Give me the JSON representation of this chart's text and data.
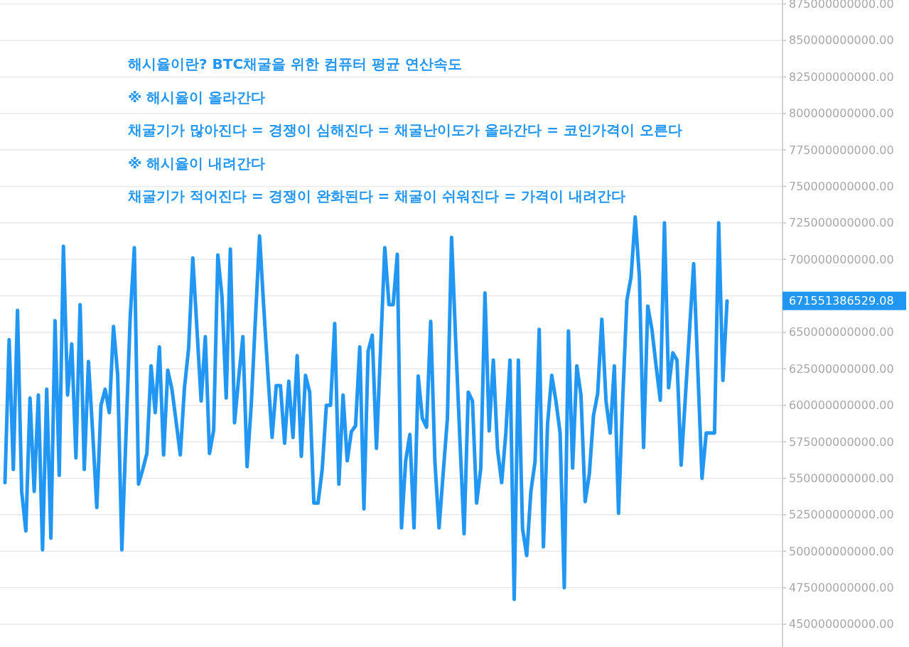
{
  "chart_data": {
    "type": "line",
    "categories": [
      null,
      null,
      null,
      null,
      null,
      null,
      null,
      null,
      null,
      null,
      null,
      null,
      null,
      null,
      null,
      null,
      null,
      null,
      null,
      null,
      null,
      null,
      null,
      null,
      null,
      null,
      null,
      null,
      null,
      null,
      null,
      null,
      null,
      null,
      null,
      null,
      null,
      null,
      null,
      null,
      null,
      null,
      null,
      null,
      null,
      null,
      null,
      null,
      null,
      null,
      null,
      null,
      null,
      null,
      null,
      null,
      null,
      null,
      null,
      null,
      null,
      null,
      null,
      null,
      null,
      null,
      null,
      null,
      null,
      null,
      null,
      null,
      null,
      null,
      null,
      null,
      null,
      null,
      null,
      null,
      null,
      null,
      null,
      null,
      null,
      null,
      null,
      null,
      null,
      null,
      null,
      null,
      null,
      null,
      null,
      null,
      null,
      null,
      null,
      null,
      null,
      null,
      null,
      null,
      null,
      null,
      null,
      null,
      null,
      null,
      null,
      null,
      null,
      null,
      null,
      null,
      null,
      null,
      null,
      null,
      null,
      null,
      null,
      null,
      null,
      null,
      null,
      null,
      null,
      null,
      null,
      null,
      null,
      null,
      null,
      null,
      null,
      null,
      null,
      null,
      null,
      null,
      null,
      null,
      null,
      null,
      null,
      null,
      null,
      null,
      null,
      null,
      null,
      null,
      null,
      null,
      null,
      null,
      null,
      null,
      null,
      null,
      null,
      null,
      null,
      null,
      null,
      null,
      null,
      null,
      null,
      null,
      null,
      null
    ],
    "series": [
      {
        "color": "#2196f3",
        "values": [
          547000000000,
          645000000000,
          556000000000,
          665000000000,
          541000000000,
          514000000000,
          605000000000,
          541000000000,
          607000000000,
          501000000000,
          611000000000,
          509000000000,
          658000000000,
          552000000000,
          709000000000,
          607000000000,
          642000000000,
          564000000000,
          669000000000,
          556000000000,
          630000000000,
          582000000000,
          530000000000,
          600000000000,
          611000000000,
          595000000000,
          654000000000,
          621000000000,
          501000000000,
          580000000000,
          660000000000,
          708000000000,
          546000000000,
          556000000000,
          567000000000,
          627000000000,
          595000000000,
          640000000000,
          566000000000,
          624000000000,
          611000000000,
          589000000000,
          566000000000,
          612000000000,
          639000000000,
          701000000000,
          652000000000,
          603000000000,
          647000000000,
          567000000000,
          583000000000,
          703000000000,
          674000000000,
          605000000000,
          707000000000,
          588000000000,
          619000000000,
          647000000000,
          558000000000,
          600000000000,
          659000000000,
          716000000000,
          667000000000,
          621000000000,
          578000000000,
          613500000000,
          613500000000,
          574000000000,
          616500000000,
          578000000000,
          634000000000,
          565000000000,
          620500000000,
          609000000000,
          533000000000,
          533000000000,
          556000000000,
          600000000000,
          600000000000,
          656000000000,
          546000000000,
          607000000000,
          562000000000,
          582000000000,
          586000000000,
          640000000000,
          529000000000,
          637000000000,
          648000000000,
          570500000000,
          639000000000,
          708000000000,
          669000000000,
          669000000000,
          703500000000,
          516000000000,
          562000000000,
          580000000000,
          516000000000,
          620000000000,
          591000000000,
          585000000000,
          657500000000,
          561500000000,
          516000000000,
          554000000000,
          591000000000,
          715000000000,
          643000000000,
          576000000000,
          512000000000,
          609000000000,
          603000000000,
          533000000000,
          557000000000,
          677000000000,
          582500000000,
          631000000000,
          570000000000,
          547000000000,
          581000000000,
          631000000000,
          467000000000,
          631000000000,
          515500000000,
          497000000000,
          541000000000,
          561500000000,
          652000000000,
          503000000000,
          587500000000,
          620500000000,
          603000000000,
          581000000000,
          475000000000,
          651000000000,
          557000000000,
          627000000000,
          607000000000,
          534000000000,
          553000000000,
          593000000000,
          608000000000,
          659000000000,
          603000000000,
          581000000000,
          627000000000,
          526000000000,
          604000000000,
          672000000000,
          688000000000,
          729000000000,
          688000000000,
          571000000000,
          668000000000,
          652000000000,
          627000000000,
          603500000000,
          725000000000,
          612000000000,
          636000000000,
          631000000000,
          559000000000,
          605000000000,
          651000000000,
          697000000000,
          624000000000,
          550000000000,
          581000000000,
          581000000000,
          581000000000,
          725000000000,
          617000000000,
          671551386529.08
        ]
      }
    ],
    "ylim": [
      434400000000,
      877700000000
    ],
    "yticks": [
      {
        "value": 450000000000,
        "label": "450000000000.00"
      },
      {
        "value": 475000000000,
        "label": "475000000000.00"
      },
      {
        "value": 500000000000,
        "label": "500000000000.00"
      },
      {
        "value": 525000000000,
        "label": "525000000000.00"
      },
      {
        "value": 550000000000,
        "label": "550000000000.00"
      },
      {
        "value": 575000000000,
        "label": "575000000000.00"
      },
      {
        "value": 600000000000,
        "label": "600000000000.00"
      },
      {
        "value": 625000000000,
        "label": "625000000000.00"
      },
      {
        "value": 650000000000,
        "label": "650000000000.00"
      },
      {
        "value": 675000000000,
        "label": null
      },
      {
        "value": 700000000000,
        "label": "700000000000.00"
      },
      {
        "value": 725000000000,
        "label": "725000000000.00"
      },
      {
        "value": 750000000000,
        "label": "750000000000.00"
      },
      {
        "value": 775000000000,
        "label": "775000000000.00"
      },
      {
        "value": 800000000000,
        "label": "800000000000.00"
      },
      {
        "value": 825000000000,
        "label": "825000000000.00"
      },
      {
        "value": 850000000000,
        "label": "850000000000.00"
      },
      {
        "value": 875000000000,
        "label": "875000000000.00"
      }
    ],
    "grid": "y",
    "tick_labels": "y",
    "annotations": [
      "해시율이란? BTC채굴을 위한 컴퓨터 평균 연산속도",
      "※ 해시율이 올라간다",
      "채굴기가 많아진다 = 경쟁이 심해진다 = 채굴난이도가 올라간다 = 코인가격이 오른다",
      "※ 해시율이 내려간다",
      "채굴기가 적어진다 = 경쟁이 완화된다 = 채굴이 쉬워진다 = 가격이 내려간다",
      "671551386529.08"
    ]
  }
}
